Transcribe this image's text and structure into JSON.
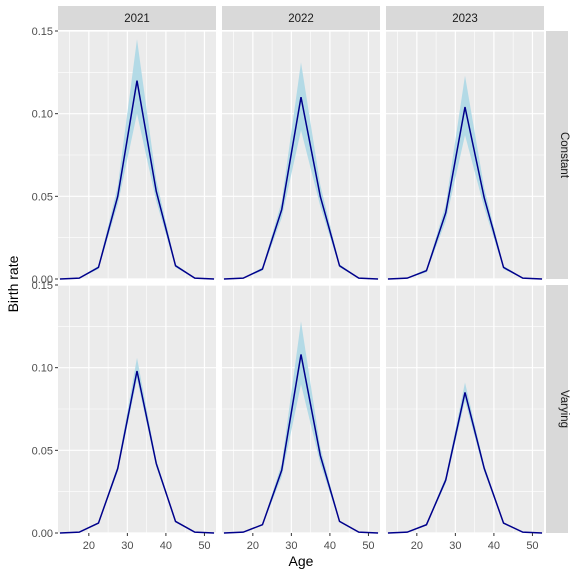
{
  "chart_data": {
    "type": "line",
    "facet_columns": [
      "2021",
      "2022",
      "2023"
    ],
    "facet_rows": [
      "Constant",
      "Varying"
    ],
    "xlabel": "Age",
    "ylabel": "Birth rate",
    "xlim": [
      12,
      53
    ],
    "ylim": [
      0,
      0.15
    ],
    "x_ticks": [
      20,
      30,
      40,
      50
    ],
    "x_tick_labels": [
      "20",
      "30",
      "40",
      "50"
    ],
    "y_ticks": [
      0,
      0.05,
      0.1,
      0.15
    ],
    "y_tick_labels": [
      "0.00",
      "0.05",
      "0.10",
      "0.15"
    ],
    "x": [
      12.5,
      17.5,
      22.5,
      27.5,
      32.5,
      37.5,
      42.5,
      47.5,
      52.5
    ],
    "line_color": "#00008b",
    "band_color": "#add8e6",
    "panel_background": "#ebebeb",
    "strip_background": "#d9d9d9",
    "grid": true,
    "panels": [
      {
        "column": "2021",
        "row": "Constant",
        "values": [
          0,
          0.0005,
          0.007,
          0.05,
          0.12,
          0.053,
          0.008,
          0.0005,
          0
        ],
        "lower": [
          0,
          0.0004,
          0.006,
          0.045,
          0.1,
          0.047,
          0.007,
          0.0004,
          0
        ],
        "upper": [
          0,
          0.0006,
          0.008,
          0.056,
          0.145,
          0.06,
          0.009,
          0.0006,
          0
        ]
      },
      {
        "column": "2022",
        "row": "Constant",
        "values": [
          0,
          0.0005,
          0.006,
          0.042,
          0.11,
          0.05,
          0.008,
          0.0005,
          0
        ],
        "lower": [
          0,
          0.0004,
          0.005,
          0.037,
          0.09,
          0.044,
          0.007,
          0.0004,
          0
        ],
        "upper": [
          0,
          0.0006,
          0.007,
          0.047,
          0.131,
          0.057,
          0.009,
          0.0006,
          0
        ]
      },
      {
        "column": "2023",
        "row": "Constant",
        "values": [
          0,
          0.0005,
          0.005,
          0.04,
          0.104,
          0.049,
          0.007,
          0.0005,
          0
        ],
        "lower": [
          0,
          0.0004,
          0.004,
          0.035,
          0.087,
          0.043,
          0.006,
          0.0004,
          0
        ],
        "upper": [
          0,
          0.0006,
          0.006,
          0.045,
          0.123,
          0.055,
          0.008,
          0.0006,
          0
        ]
      },
      {
        "column": "2021",
        "row": "Varying",
        "values": [
          0,
          0.0005,
          0.006,
          0.039,
          0.098,
          0.042,
          0.007,
          0.0005,
          0
        ],
        "lower": [
          0,
          0.0004,
          0.0055,
          0.037,
          0.093,
          0.04,
          0.0065,
          0.0004,
          0
        ],
        "upper": [
          0,
          0.0006,
          0.0065,
          0.041,
          0.106,
          0.044,
          0.0075,
          0.0006,
          0
        ]
      },
      {
        "column": "2022",
        "row": "Varying",
        "values": [
          0,
          0.0005,
          0.005,
          0.038,
          0.108,
          0.047,
          0.007,
          0.0005,
          0
        ],
        "lower": [
          0,
          0.0004,
          0.0045,
          0.034,
          0.09,
          0.042,
          0.0065,
          0.0004,
          0
        ],
        "upper": [
          0,
          0.0006,
          0.0055,
          0.042,
          0.128,
          0.052,
          0.0075,
          0.0006,
          0
        ]
      },
      {
        "column": "2023",
        "row": "Varying",
        "values": [
          0,
          0.0005,
          0.005,
          0.032,
          0.085,
          0.039,
          0.006,
          0.0005,
          0
        ],
        "lower": [
          0,
          0.0004,
          0.0045,
          0.03,
          0.08,
          0.037,
          0.0055,
          0.0004,
          0
        ],
        "upper": [
          0,
          0.0006,
          0.0055,
          0.034,
          0.091,
          0.041,
          0.0065,
          0.0006,
          0
        ]
      }
    ]
  }
}
